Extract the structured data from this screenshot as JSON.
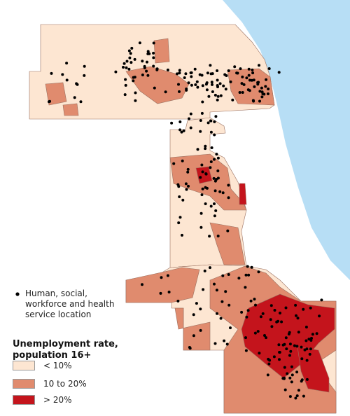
{
  "legend": {
    "points_label": "Human, social, workforce and health service location",
    "title": "Unemployment rate, population 16+",
    "classes": [
      {
        "label": "< 10%",
        "color": "#fde6d2"
      },
      {
        "label": "10 to 20%",
        "color": "#e08b6e"
      },
      {
        "label": "> 20%",
        "color": "#c4141c"
      }
    ]
  }
}
